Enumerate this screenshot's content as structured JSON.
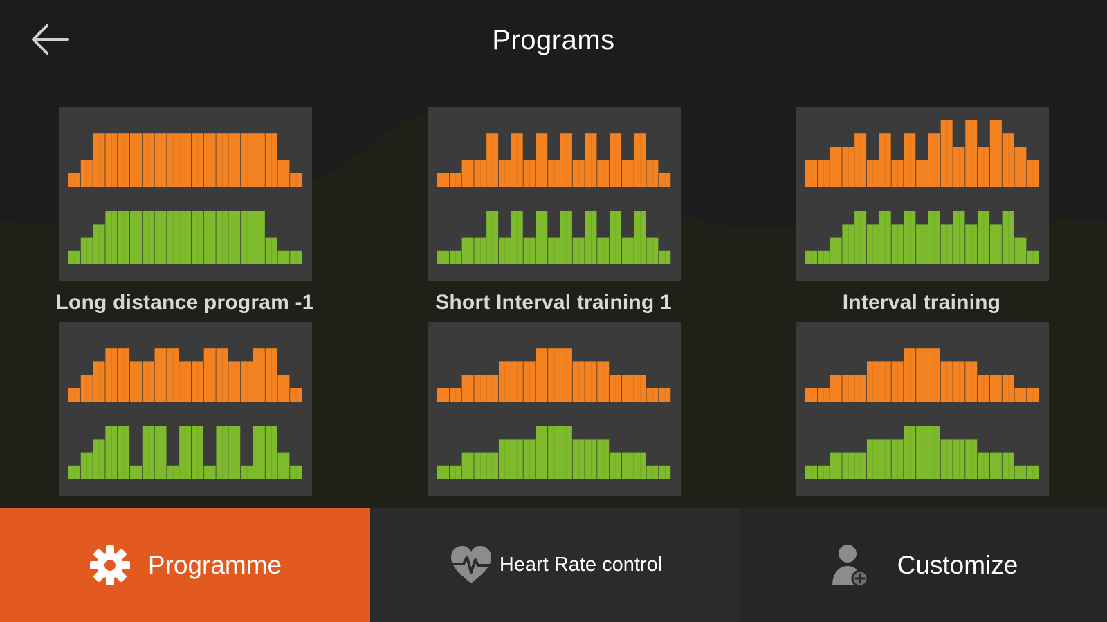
{
  "header": {
    "title": "Programs",
    "back_icon": "arrow-left-icon"
  },
  "colors": {
    "background": "#1c1c1c",
    "card": "#3b3b3b",
    "speed_bars": "#f58220",
    "incline_bars": "#7dbb2c",
    "accent": "#e35a21",
    "bottom_bar": "#2b2b2b"
  },
  "programs": [
    {
      "label": "Long distance program -1",
      "orange": [
        1,
        2,
        4,
        4,
        4,
        4,
        4,
        4,
        4,
        4,
        4,
        4,
        4,
        4,
        4,
        4,
        4,
        2,
        1
      ],
      "green": [
        1,
        2,
        3,
        4,
        4,
        4,
        4,
        4,
        4,
        4,
        4,
        4,
        4,
        4,
        4,
        4,
        2,
        1,
        1
      ]
    },
    {
      "label": "Short Interval training 1",
      "orange": [
        1,
        1,
        2,
        2,
        4,
        2,
        4,
        2,
        4,
        2,
        4,
        2,
        4,
        2,
        4,
        2,
        4,
        2,
        1
      ],
      "green": [
        1,
        1,
        2,
        2,
        4,
        2,
        4,
        2,
        4,
        2,
        4,
        2,
        4,
        2,
        4,
        2,
        4,
        2,
        1
      ]
    },
    {
      "label": "Interval training",
      "orange": [
        2,
        2,
        3,
        3,
        4,
        2,
        4,
        2,
        4,
        2,
        4,
        5,
        3,
        5,
        3,
        5,
        4,
        3,
        2
      ],
      "green": [
        1,
        1,
        2,
        3,
        4,
        3,
        4,
        3,
        4,
        3,
        4,
        3,
        4,
        3,
        4,
        3,
        4,
        2,
        1
      ]
    },
    {
      "label": "",
      "orange": [
        1,
        2,
        3,
        4,
        4,
        3,
        3,
        4,
        4,
        3,
        3,
        4,
        4,
        3,
        3,
        4,
        4,
        2,
        1
      ],
      "green": [
        1,
        2,
        3,
        4,
        4,
        1,
        4,
        4,
        1,
        4,
        4,
        1,
        4,
        4,
        1,
        4,
        4,
        2,
        1
      ]
    },
    {
      "label": "",
      "orange": [
        1,
        1,
        2,
        2,
        2,
        3,
        3,
        3,
        4,
        4,
        4,
        3,
        3,
        3,
        2,
        2,
        2,
        1,
        1
      ],
      "green": [
        1,
        1,
        2,
        2,
        2,
        3,
        3,
        3,
        4,
        4,
        4,
        3,
        3,
        3,
        2,
        2,
        2,
        1,
        1
      ]
    },
    {
      "label": "",
      "orange": [
        1,
        1,
        2,
        2,
        2,
        3,
        3,
        3,
        4,
        4,
        4,
        3,
        3,
        3,
        2,
        2,
        2,
        1,
        1
      ],
      "green": [
        1,
        1,
        2,
        2,
        2,
        3,
        3,
        3,
        4,
        4,
        4,
        3,
        3,
        3,
        2,
        2,
        2,
        1,
        1
      ]
    }
  ],
  "nav": {
    "programme": {
      "label": "Programme",
      "icon": "gear-icon"
    },
    "heart_rate": {
      "label": "Heart Rate control",
      "icon": "heart-rate-icon"
    },
    "customize": {
      "label": "Customize",
      "icon": "user-add-icon"
    }
  }
}
